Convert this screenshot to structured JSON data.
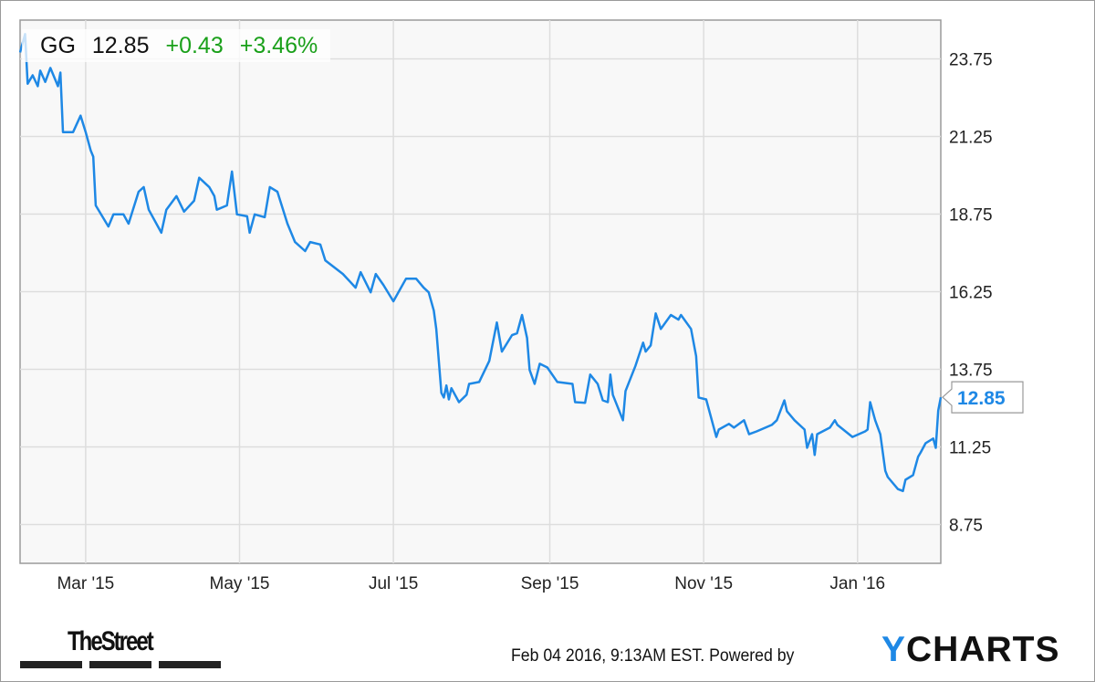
{
  "header": {
    "symbol": "GG",
    "price": "12.85",
    "change": "+0.43",
    "change_pct": "+3.46%"
  },
  "last_price_label": "12.85",
  "footer": {
    "brand_left": "TheStreet",
    "timestamp": "Feb 04 2016, 9:13AM EST.",
    "powered_by": "Powered by",
    "brand_right": "YCHARTS"
  },
  "colors": {
    "line": "#1e88e5",
    "positive": "#1aa01a",
    "plot_bg": "#f8f8f8",
    "grid": "#dddddd"
  },
  "chart_data": {
    "type": "line",
    "title": "",
    "xlabel": "",
    "ylabel": "",
    "x_range": [
      "2015-02-03",
      "2016-02-03"
    ],
    "ylim": [
      7.5,
      25.0
    ],
    "y_axis_side": "right",
    "grid": true,
    "yticks": [
      "23.75",
      "21.25",
      "18.75",
      "16.25",
      "13.75",
      "11.25",
      "8.75"
    ],
    "xticks": [
      {
        "label": "Mar '15",
        "date": "2015-03-01"
      },
      {
        "label": "May '15",
        "date": "2015-05-01"
      },
      {
        "label": "Jul '15",
        "date": "2015-07-01"
      },
      {
        "label": "Sep '15",
        "date": "2015-09-01"
      },
      {
        "label": "Nov '15",
        "date": "2015-11-01"
      },
      {
        "label": "Jan '16",
        "date": "2016-01-01"
      }
    ],
    "series": [
      {
        "x": [
          "2015-02-03",
          "2015-02-05",
          "2015-02-06",
          "2015-02-08",
          "2015-02-10",
          "2015-02-11",
          "2015-02-13",
          "2015-02-15",
          "2015-02-17",
          "2015-02-18",
          "2015-02-19",
          "2015-02-20",
          "2015-02-24",
          "2015-02-27",
          "2015-03-01",
          "2015-03-03",
          "2015-03-04",
          "2015-03-05",
          "2015-03-10",
          "2015-03-12",
          "2015-03-16",
          "2015-03-18",
          "2015-03-22",
          "2015-03-24",
          "2015-03-26",
          "2015-03-31",
          "2015-04-02",
          "2015-04-06",
          "2015-04-09",
          "2015-04-13",
          "2015-04-15",
          "2015-04-19",
          "2015-04-21",
          "2015-04-22",
          "2015-04-26",
          "2015-04-28",
          "2015-04-30",
          "2015-05-04",
          "2015-05-05",
          "2015-05-07",
          "2015-05-11",
          "2015-05-13",
          "2015-05-16",
          "2015-05-20",
          "2015-05-23",
          "2015-05-27",
          "2015-05-29",
          "2015-06-02",
          "2015-06-04",
          "2015-06-11",
          "2015-06-16",
          "2015-06-18",
          "2015-06-22",
          "2015-06-24",
          "2015-06-27",
          "2015-07-01",
          "2015-07-06",
          "2015-07-10",
          "2015-07-13",
          "2015-07-15",
          "2015-07-17",
          "2015-07-18",
          "2015-07-20",
          "2015-07-21",
          "2015-07-22",
          "2015-07-23",
          "2015-07-24",
          "2015-07-27",
          "2015-07-30",
          "2015-07-31",
          "2015-08-04",
          "2015-08-08",
          "2015-08-11",
          "2015-08-13",
          "2015-08-17",
          "2015-08-19",
          "2015-08-21",
          "2015-08-23",
          "2015-08-24",
          "2015-08-26",
          "2015-08-28",
          "2015-08-31",
          "2015-09-04",
          "2015-09-10",
          "2015-09-11",
          "2015-09-15",
          "2015-09-17",
          "2015-09-20",
          "2015-09-22",
          "2015-09-24",
          "2015-09-25",
          "2015-09-26",
          "2015-09-30",
          "2015-10-01",
          "2015-10-05",
          "2015-10-08",
          "2015-10-09",
          "2015-10-11",
          "2015-10-13",
          "2015-10-15",
          "2015-10-19",
          "2015-10-22",
          "2015-10-23",
          "2015-10-27",
          "2015-10-29",
          "2015-10-30",
          "2015-11-02",
          "2015-11-06",
          "2015-11-07",
          "2015-11-11",
          "2015-11-13",
          "2015-11-17",
          "2015-11-19",
          "2015-11-22",
          "2015-11-28",
          "2015-11-30",
          "2015-12-03",
          "2015-12-04",
          "2015-12-07",
          "2015-12-11",
          "2015-12-12",
          "2015-12-14",
          "2015-12-15",
          "2015-12-16",
          "2015-12-21",
          "2015-12-23",
          "2015-12-24",
          "2015-12-30",
          "2016-01-04",
          "2016-01-05",
          "2016-01-06",
          "2016-01-08",
          "2016-01-10",
          "2016-01-12",
          "2016-01-13",
          "2016-01-17",
          "2016-01-19",
          "2016-01-20",
          "2016-01-23",
          "2016-01-25",
          "2016-01-26",
          "2016-01-28",
          "2016-01-31",
          "2016-02-01",
          "2016-02-02",
          "2016-02-03"
        ],
        "values": [
          23.96,
          24.55,
          22.95,
          23.22,
          22.87,
          23.37,
          23.01,
          23.46,
          23.07,
          22.87,
          23.31,
          21.39,
          21.39,
          21.92,
          21.39,
          20.8,
          20.6,
          19.03,
          18.35,
          18.74,
          18.74,
          18.44,
          19.47,
          19.62,
          18.89,
          18.15,
          18.89,
          19.33,
          18.83,
          19.18,
          19.92,
          19.62,
          19.33,
          18.89,
          19.03,
          20.12,
          18.74,
          18.68,
          18.15,
          18.74,
          18.65,
          19.62,
          19.47,
          18.44,
          17.85,
          17.56,
          17.85,
          17.77,
          17.26,
          16.82,
          16.38,
          16.88,
          16.23,
          16.82,
          16.47,
          15.94,
          16.67,
          16.67,
          16.38,
          16.23,
          15.64,
          15.05,
          12.99,
          12.84,
          13.23,
          12.78,
          13.14,
          12.69,
          12.93,
          13.28,
          13.34,
          14.02,
          15.26,
          14.32,
          14.85,
          14.91,
          15.5,
          14.76,
          13.73,
          13.28,
          13.93,
          13.81,
          13.34,
          13.28,
          12.69,
          12.67,
          13.58,
          13.28,
          12.75,
          12.69,
          13.58,
          12.93,
          12.11,
          13.05,
          13.87,
          14.61,
          14.32,
          14.52,
          15.55,
          15.05,
          15.5,
          15.35,
          15.5,
          15.05,
          14.17,
          12.84,
          12.78,
          11.57,
          11.81,
          11.99,
          11.87,
          12.11,
          11.66,
          11.75,
          11.96,
          12.11,
          12.75,
          12.4,
          12.11,
          11.81,
          11.22,
          11.66,
          10.99,
          11.66,
          11.87,
          12.11,
          11.96,
          11.57,
          11.75,
          11.81,
          12.69,
          12.11,
          11.66,
          10.48,
          10.28,
          9.89,
          9.83,
          10.19,
          10.34,
          10.93,
          11.07,
          11.37,
          11.52,
          11.22,
          12.42,
          12.85
        ]
      }
    ]
  }
}
